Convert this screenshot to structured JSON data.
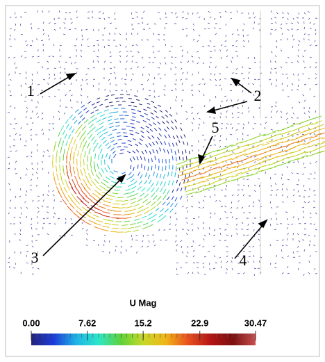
{
  "figure": {
    "labels": [
      "1",
      "2",
      "3",
      "4",
      "5"
    ],
    "colorbar": {
      "title": "U Mag",
      "range": [
        0,
        30.47
      ],
      "ticks": [
        {
          "value": 0,
          "label": "0.00"
        },
        {
          "value": 7.62,
          "label": "7.62"
        },
        {
          "value": 15.2,
          "label": "15.2"
        },
        {
          "value": 22.9,
          "label": "22.9"
        },
        {
          "value": 30.47,
          "label": "30.47"
        }
      ],
      "colors": [
        "#23237a",
        "#1c3cd8",
        "#1fb4e6",
        "#2de6c8",
        "#5fd23a",
        "#c8d82a",
        "#f0b418",
        "#e8501e",
        "#b41414",
        "#7a1010",
        "#c85050"
      ]
    }
  }
}
